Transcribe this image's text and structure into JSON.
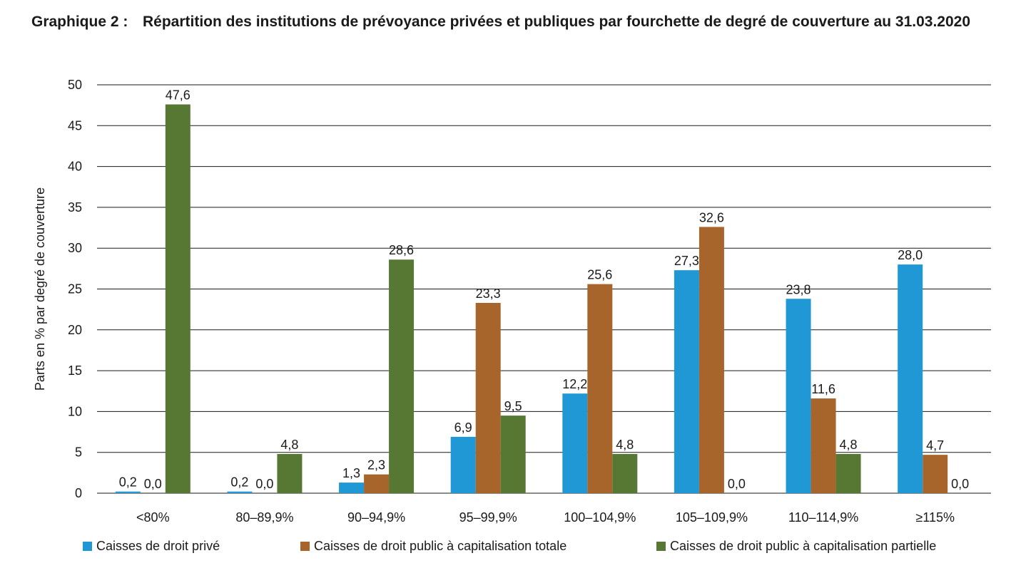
{
  "title": {
    "prefix": "Graphique 2 :",
    "text": "Répartition des institutions de prévoyance privées et publiques par fourchette de degré de couverture au 31.03.2020"
  },
  "chart_data": {
    "type": "bar",
    "ylabel": "Parts en % par degré de couverture",
    "ylim": [
      0,
      50
    ],
    "yticks": [
      0,
      5,
      10,
      15,
      20,
      25,
      30,
      35,
      40,
      45,
      50
    ],
    "grid": true,
    "legend_position": "bottom",
    "categories": [
      "<80%",
      "80–89,9%",
      "90–94,9%",
      "95–99,9%",
      "100–104,9%",
      "105–109,9%",
      "110–114,9%",
      "≥115%"
    ],
    "series": [
      {
        "name": "Caisses de droit privé",
        "color": "#1f98d5",
        "values": [
          0.2,
          0.2,
          1.3,
          6.9,
          12.2,
          27.3,
          23.8,
          28.0
        ],
        "labels": [
          "0,2",
          "0,2",
          "1,3",
          "6,9",
          "12,2",
          "27,3",
          "23,8",
          "28,0"
        ]
      },
      {
        "name": "Caisses de droit public à capitalisation totale",
        "color": "#a8652b",
        "values": [
          0.0,
          0.0,
          2.3,
          23.3,
          25.6,
          32.6,
          11.6,
          4.7
        ],
        "labels": [
          "0,0",
          "0,0",
          "2,3",
          "23,3",
          "25,6",
          "32,6",
          "11,6",
          "4,7"
        ]
      },
      {
        "name": "Caisses de droit public à capitalisation partielle",
        "color": "#567833",
        "values": [
          47.6,
          4.8,
          28.6,
          9.5,
          4.8,
          0.0,
          4.8,
          0.0
        ],
        "labels": [
          "47,6",
          "4,8",
          "28,6",
          "9,5",
          "4,8",
          "0,0",
          "4,8",
          "0,0"
        ]
      }
    ]
  }
}
